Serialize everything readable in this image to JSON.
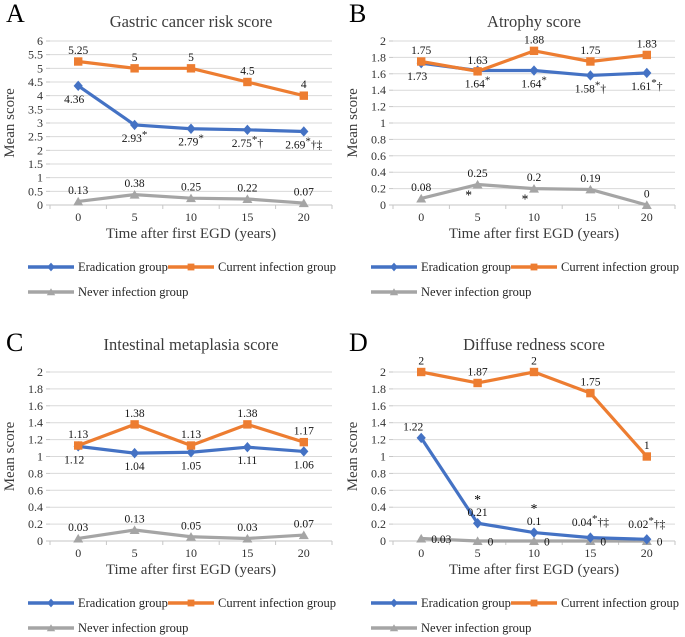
{
  "figure": {
    "background": "#ffffff",
    "panel_letters": [
      "A",
      "B",
      "C",
      "D"
    ]
  },
  "colors": {
    "eradication": "#4472C4",
    "current_infection": "#ED7D31",
    "never_infection": "#A5A5A5",
    "gridline": "#D9D9D9",
    "axis": "#C6C6C6",
    "text": "#3C3C3C",
    "data_label": "#141414"
  },
  "legend": {
    "items": [
      {
        "label": "Eradication group",
        "color": "#4472C4",
        "marker": "diamond"
      },
      {
        "label": "Current infection group",
        "color": "#ED7D31",
        "marker": "square"
      },
      {
        "label": "Never infection group",
        "color": "#A5A5A5",
        "marker": "triangle"
      }
    ]
  },
  "chart_data": [
    {
      "id": "A",
      "type": "line",
      "title": "Gastric cancer risk score",
      "xlabel": "Time after first EGD (years)",
      "ylabel": "Mean score",
      "x": [
        "0",
        "5",
        "10",
        "15",
        "20"
      ],
      "ylim": [
        0,
        6
      ],
      "ystep": 0.5,
      "grid": true,
      "legend_position": "bottom",
      "series": [
        {
          "name": "Eradication group",
          "color": "#4472C4",
          "marker": "diamond",
          "label_side": "below",
          "values": [
            4.36,
            2.93,
            2.79,
            2.75,
            2.69
          ],
          "labels": [
            {
              "t": "4.36",
              "dx": -4
            },
            {
              "t": "2.93",
              "s": "*"
            },
            {
              "t": "2.79",
              "s": "*"
            },
            {
              "t": "2.75",
              "s": "*†"
            },
            {
              "t": "2.69",
              "s": "*†‡"
            }
          ]
        },
        {
          "name": "Current infection group",
          "color": "#ED7D31",
          "marker": "square",
          "label_side": "above",
          "values": [
            5.25,
            5,
            5,
            4.5,
            4
          ],
          "labels": [
            {
              "t": "5.25"
            },
            {
              "t": "5"
            },
            {
              "t": "5"
            },
            {
              "t": "4.5"
            },
            {
              "t": "4"
            }
          ]
        },
        {
          "name": "Never infection group",
          "color": "#A5A5A5",
          "marker": "triangle",
          "label_side": "above",
          "values": [
            0.13,
            0.38,
            0.25,
            0.22,
            0.07
          ],
          "labels": [
            {
              "t": "0.13"
            },
            {
              "t": "0.38"
            },
            {
              "t": "0.25"
            },
            {
              "t": "0.22"
            },
            {
              "t": "0.07"
            }
          ]
        }
      ]
    },
    {
      "id": "B",
      "type": "line",
      "title": "Atrophy score",
      "xlabel": "Time after first EGD (years)",
      "ylabel": "Mean score",
      "x": [
        "0",
        "5",
        "10",
        "15",
        "20"
      ],
      "ylim": [
        0,
        2
      ],
      "ystep": 0.2,
      "grid": true,
      "legend_position": "bottom",
      "series": [
        {
          "name": "Eradication group",
          "color": "#4472C4",
          "marker": "diamond",
          "label_side": "below",
          "values": [
            1.73,
            1.64,
            1.64,
            1.58,
            1.61
          ],
          "labels": [
            {
              "t": "1.73",
              "dx": -4
            },
            {
              "t": "1.64",
              "s": "*"
            },
            {
              "t": "1.64",
              "s": "*"
            },
            {
              "t": "1.58",
              "s": "*†"
            },
            {
              "t": "1.61",
              "s": "*†"
            }
          ]
        },
        {
          "name": "Current infection group",
          "color": "#ED7D31",
          "marker": "square",
          "label_side": "above",
          "values": [
            1.75,
            1.63,
            1.88,
            1.75,
            1.83
          ],
          "labels": [
            {
              "t": "1.75"
            },
            {
              "t": "1.63"
            },
            {
              "t": "1.88"
            },
            {
              "t": "1.75"
            },
            {
              "t": "1.83"
            }
          ]
        },
        {
          "name": "Never infection group",
          "color": "#A5A5A5",
          "marker": "triangle",
          "label_side": "above",
          "values": [
            0.08,
            0.25,
            0.2,
            0.19,
            0
          ],
          "labels": [
            {
              "t": "0.08"
            },
            {
              "t": "0.25",
              "m": "*"
            },
            {
              "t": "0.2",
              "m": "*"
            },
            {
              "t": "0.19"
            },
            {
              "t": "0"
            }
          ]
        }
      ]
    },
    {
      "id": "C",
      "type": "line",
      "title": "Intestinal metaplasia score",
      "xlabel": "Time after first EGD (years)",
      "ylabel": "Mean score",
      "x": [
        "0",
        "5",
        "10",
        "15",
        "20"
      ],
      "ylim": [
        0,
        2
      ],
      "ystep": 0.2,
      "grid": true,
      "legend_position": "bottom",
      "series": [
        {
          "name": "Eradication group",
          "color": "#4472C4",
          "marker": "diamond",
          "label_side": "below",
          "values": [
            1.12,
            1.04,
            1.05,
            1.11,
            1.06
          ],
          "labels": [
            {
              "t": "1.12",
              "dx": -4
            },
            {
              "t": "1.04"
            },
            {
              "t": "1.05"
            },
            {
              "t": "1.11"
            },
            {
              "t": "1.06"
            }
          ]
        },
        {
          "name": "Current infection group",
          "color": "#ED7D31",
          "marker": "square",
          "label_side": "above",
          "values": [
            1.13,
            1.38,
            1.13,
            1.38,
            1.17
          ],
          "labels": [
            {
              "t": "1.13"
            },
            {
              "t": "1.38"
            },
            {
              "t": "1.13"
            },
            {
              "t": "1.38"
            },
            {
              "t": "1.17"
            }
          ]
        },
        {
          "name": "Never infection group",
          "color": "#A5A5A5",
          "marker": "triangle",
          "label_side": "above",
          "values": [
            0.03,
            0.13,
            0.05,
            0.03,
            0.07
          ],
          "labels": [
            {
              "t": "0.03"
            },
            {
              "t": "0.13"
            },
            {
              "t": "0.05"
            },
            {
              "t": "0.03"
            },
            {
              "t": "0.07"
            }
          ]
        }
      ]
    },
    {
      "id": "D",
      "type": "line",
      "title": "Diffuse redness score",
      "xlabel": "Time after first EGD (years)",
      "ylabel": "Mean score",
      "x": [
        "0",
        "5",
        "10",
        "15",
        "20"
      ],
      "ylim": [
        0,
        2
      ],
      "ystep": 0.2,
      "grid": true,
      "legend_position": "bottom",
      "series": [
        {
          "name": "Eradication group",
          "color": "#4472C4",
          "marker": "diamond",
          "label_side": "above",
          "values": [
            1.22,
            0.21,
            0.1,
            0.04,
            0.02
          ],
          "labels": [
            {
              "t": "1.22",
              "dx": -8
            },
            {
              "t": "0.21",
              "a": "*"
            },
            {
              "t": "0.1",
              "a": "*"
            },
            {
              "t": "0.04",
              "s": "*†‡",
              "dy": -4
            },
            {
              "t": "0.02",
              "s": "*†‡",
              "dy": -4
            }
          ]
        },
        {
          "name": "Current infection group",
          "color": "#ED7D31",
          "marker": "square",
          "label_side": "above",
          "values": [
            2,
            1.87,
            2,
            1.75,
            1
          ],
          "labels": [
            {
              "t": "2"
            },
            {
              "t": "1.87"
            },
            {
              "t": "2"
            },
            {
              "t": "1.75"
            },
            {
              "t": "1"
            }
          ]
        },
        {
          "name": "Never infection group",
          "color": "#A5A5A5",
          "marker": "triangle",
          "label_side": "right",
          "values": [
            0.03,
            0,
            0,
            0,
            0
          ],
          "labels": [
            {
              "t": "0.03"
            },
            {
              "t": "0"
            },
            {
              "t": "0"
            },
            {
              "t": "0"
            },
            {
              "t": "0"
            }
          ]
        }
      ]
    }
  ]
}
